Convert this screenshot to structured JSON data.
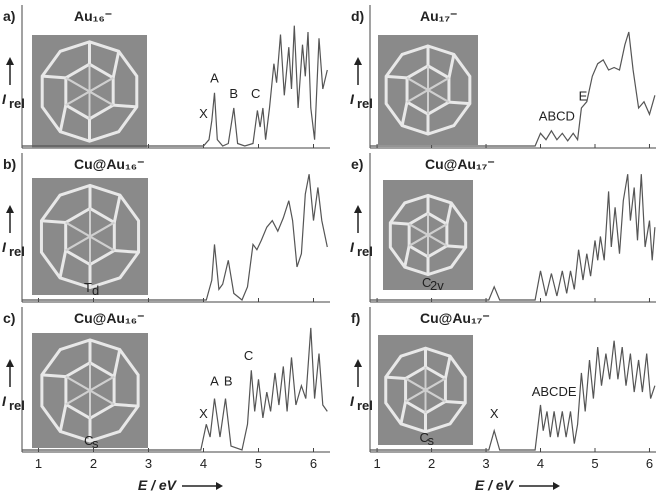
{
  "chart_data": [
    {
      "type": "line",
      "label": "a)",
      "title": "Au₁₆⁻",
      "ylabel": {
        "base": "I",
        "sub": "rel"
      },
      "xlim": [
        0.7,
        6.3
      ],
      "ylim": [
        0,
        1.05
      ],
      "xticks": [
        1,
        2,
        3,
        4,
        5,
        6
      ],
      "color": "#555555",
      "annotations": [
        "X",
        "A",
        "B",
        "C"
      ],
      "x": [
        0.7,
        4.0,
        4.1,
        4.15,
        4.2,
        4.25,
        4.35,
        4.45,
        4.55,
        4.62,
        4.75,
        4.9,
        4.98,
        5.03,
        5.08,
        5.13,
        5.2,
        5.28,
        5.33,
        5.4,
        5.47,
        5.55,
        5.6,
        5.65,
        5.72,
        5.8,
        5.85,
        5.9,
        5.95,
        6.02,
        6.1,
        6.17,
        6.25
      ],
      "values": [
        0,
        0,
        0.05,
        0.2,
        0.42,
        0.05,
        0,
        0.02,
        0.3,
        0.02,
        0,
        0.02,
        0.28,
        0.15,
        0.3,
        0.05,
        0.3,
        0.65,
        0.5,
        0.88,
        0.4,
        0.78,
        0.45,
        0.95,
        0.3,
        0.8,
        0.55,
        0.9,
        0.3,
        0.05,
        0.85,
        0.45,
        0.6
      ]
    },
    {
      "type": "line",
      "label": "b)",
      "title": "Cu@Au₁₆⁻",
      "ylabel": {
        "base": "I",
        "sub": "rel"
      },
      "symmetry": {
        "base": "T",
        "sub": "d"
      },
      "xlim": [
        0.7,
        6.3
      ],
      "ylim": [
        0,
        1.05
      ],
      "xticks": [
        1,
        2,
        3,
        4,
        5,
        6
      ],
      "color": "#555555",
      "x": [
        0.7,
        4.05,
        4.15,
        4.2,
        4.28,
        4.35,
        4.45,
        4.55,
        4.7,
        4.8,
        4.9,
        4.97,
        5.05,
        5.15,
        5.25,
        5.35,
        5.45,
        5.55,
        5.62,
        5.7,
        5.78,
        5.85,
        5.92,
        6.0,
        6.08,
        6.15,
        6.25
      ],
      "values": [
        0,
        0,
        0.15,
        0.42,
        0.08,
        0.12,
        0.3,
        0.05,
        0,
        0.1,
        0.42,
        0.38,
        0.45,
        0.55,
        0.6,
        0.52,
        0.62,
        0.75,
        0.6,
        0.25,
        0.35,
        0.8,
        0.95,
        0.6,
        0.85,
        0.6,
        0.4
      ]
    },
    {
      "type": "line",
      "label": "c)",
      "title": "Cu@Au₁₆⁻",
      "ylabel": {
        "base": "I",
        "sub": "rel"
      },
      "symmetry": {
        "base": "C",
        "sub": "s"
      },
      "xlim": [
        0.7,
        6.3
      ],
      "ylim": [
        0,
        1.05
      ],
      "xticks": [
        1,
        2,
        3,
        4,
        5,
        6
      ],
      "tick_labels": true,
      "xlabel": "E / eV",
      "color": "#555555",
      "annotations": [
        "X",
        "A",
        "B",
        "C"
      ],
      "x": [
        0.7,
        3.95,
        4.05,
        4.12,
        4.2,
        4.3,
        4.4,
        4.5,
        4.7,
        4.8,
        4.87,
        4.93,
        5.0,
        5.08,
        5.15,
        5.22,
        5.3,
        5.37,
        5.45,
        5.52,
        5.6,
        5.68,
        5.78,
        5.86,
        5.95,
        6.02,
        6.1,
        6.17,
        6.25
      ],
      "values": [
        0,
        0,
        0.2,
        0.1,
        0.4,
        0.1,
        0.4,
        0.03,
        0,
        0.2,
        0.62,
        0.3,
        0.55,
        0.25,
        0.45,
        0.3,
        0.6,
        0.35,
        0.65,
        0.3,
        0.72,
        0.35,
        0.5,
        0.4,
        0.95,
        0.4,
        0.75,
        0.35,
        0.3
      ]
    },
    {
      "type": "line",
      "label": "d)",
      "title": "Au₁₇⁻",
      "ylabel": {
        "base": "I",
        "sub": "rel"
      },
      "xlim": [
        0.87,
        6.12
      ],
      "ylim": [
        0,
        1.05
      ],
      "xticks": [
        1,
        2,
        3,
        4,
        5,
        6
      ],
      "color": "#555555",
      "annotations": [
        "ABCD",
        "E"
      ],
      "x": [
        0.87,
        3.9,
        4.0,
        4.1,
        4.2,
        4.3,
        4.4,
        4.5,
        4.6,
        4.68,
        4.75,
        4.85,
        4.95,
        5.05,
        5.15,
        5.25,
        5.35,
        5.45,
        5.55,
        5.62,
        5.7,
        5.8,
        5.9,
        6.0,
        6.1
      ],
      "values": [
        0,
        0,
        0.1,
        0.05,
        0.12,
        0.05,
        0.1,
        0.04,
        0.1,
        0.05,
        0.3,
        0.35,
        0.55,
        0.65,
        0.68,
        0.6,
        0.62,
        0.6,
        0.8,
        0.9,
        0.6,
        0.3,
        0.35,
        0.25,
        0.4
      ]
    },
    {
      "type": "line",
      "label": "e)",
      "title": "Cu@Au₁₇⁻",
      "ylabel": {
        "base": "I",
        "sub": "rel"
      },
      "symmetry": {
        "base": "C",
        "sub": "2v"
      },
      "xlim": [
        0.87,
        6.12
      ],
      "ylim": [
        0,
        1.05
      ],
      "xticks": [
        1,
        2,
        3,
        4,
        5,
        6
      ],
      "color": "#555555",
      "x": [
        0.87,
        3.05,
        3.15,
        3.25,
        3.9,
        4.0,
        4.1,
        4.2,
        4.3,
        4.4,
        4.48,
        4.55,
        4.62,
        4.7,
        4.78,
        4.85,
        4.92,
        5.0,
        5.05,
        5.1,
        5.17,
        5.25,
        5.3,
        5.37,
        5.45,
        5.52,
        5.6,
        5.65,
        5.72,
        5.78,
        5.85,
        5.92,
        6.0,
        6.05,
        6.1
      ],
      "values": [
        0,
        0,
        0.1,
        0,
        0,
        0.22,
        0.03,
        0.2,
        0.03,
        0.22,
        0.05,
        0.22,
        0.08,
        0.38,
        0.15,
        0.35,
        0.18,
        0.45,
        0.3,
        0.48,
        0.3,
        0.82,
        0.4,
        0.7,
        0.35,
        0.75,
        0.95,
        0.6,
        0.85,
        0.45,
        0.95,
        0.4,
        0.6,
        0.3,
        0.55
      ]
    },
    {
      "type": "line",
      "label": "f)",
      "title": "Cu@Au₁₇⁻",
      "ylabel": {
        "base": "I",
        "sub": "rel"
      },
      "symmetry": {
        "base": "C",
        "sub": "s"
      },
      "xlim": [
        0.87,
        6.12
      ],
      "ylim": [
        0,
        1.05
      ],
      "xticks": [
        1,
        2,
        3,
        4,
        5,
        6
      ],
      "tick_labels": true,
      "xlabel": "E / eV",
      "color": "#555555",
      "annotations": [
        "X",
        "ABCDE"
      ],
      "x": [
        0.87,
        3.05,
        3.15,
        3.25,
        3.9,
        4.0,
        4.05,
        4.12,
        4.18,
        4.25,
        4.32,
        4.4,
        4.47,
        4.55,
        4.62,
        4.68,
        4.75,
        4.82,
        4.9,
        4.97,
        5.05,
        5.12,
        5.2,
        5.27,
        5.35,
        5.42,
        5.5,
        5.57,
        5.65,
        5.72,
        5.8,
        5.87,
        5.95,
        6.02,
        6.1
      ],
      "values": [
        0,
        0,
        0.15,
        0,
        0,
        0.35,
        0.15,
        0.3,
        0.1,
        0.3,
        0.1,
        0.3,
        0.1,
        0.3,
        0.05,
        0.2,
        0.6,
        0.3,
        0.7,
        0.4,
        0.8,
        0.5,
        0.75,
        0.55,
        0.85,
        0.55,
        0.8,
        0.5,
        0.75,
        0.45,
        0.7,
        0.45,
        0.75,
        0.4,
        0.5
      ]
    }
  ]
}
